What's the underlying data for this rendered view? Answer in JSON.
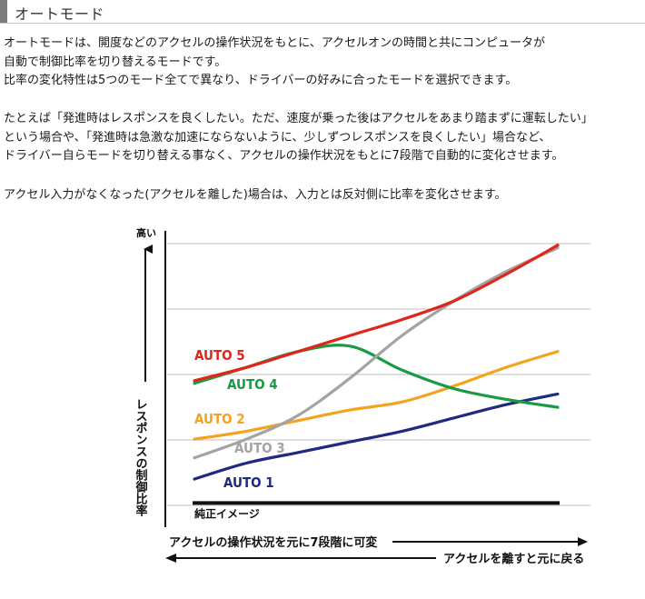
{
  "header": {
    "title": "オートモード"
  },
  "paragraphs": [
    {
      "lines": [
        "オートモードは、開度などのアクセルの操作状況をもとに、アクセルオンの時間と共にコンピュータが",
        "自動で制御比率を切り替えるモードです。",
        "比率の変化特性は5つのモード全てで異なり、ドライバーの好みに合ったモードを選択できます。"
      ]
    },
    {
      "lines": [
        "たとえば「発進時はレスポンスを良くしたい。ただ、速度が乗った後はアクセルをあまり踏まずに運転したい」",
        "という場合や、「発進時は急激な加速にならないように、少しずつレスポンスを良くしたい」場合など、",
        "ドライバー自らモードを切り替える事なく、アクセルの操作状況をもとに7段階で自動的に変化させます。"
      ]
    },
    {
      "lines": [
        "アクセル入力がなくなった(アクセルを離した)場合は、入力とは反対側に比率を変化させます。"
      ]
    }
  ],
  "chart_data": {
    "type": "line",
    "ylabel_top": "高い",
    "ylabel": "レスポンスの制御比率",
    "xlabel_forward": "アクセルの操作状況を元に7段階に可変",
    "xlabel_backward": "アクセルを離すと元に戻る",
    "y_gridlines": 5,
    "legend_placement": "inline",
    "baseline_label": "純正イメージ",
    "x": [
      0,
      1,
      2,
      3,
      4,
      5,
      6,
      7
    ],
    "series": [
      {
        "name": "AUTO 5",
        "color": "#e0251b",
        "values": [
          2.05,
          2.3,
          2.6,
          2.9,
          3.2,
          3.55,
          4.05,
          4.6
        ]
      },
      {
        "name": "AUTO 4",
        "color": "#1a9a45",
        "values": [
          2.0,
          2.3,
          2.6,
          2.7,
          2.25,
          1.9,
          1.7,
          1.55
        ]
      },
      {
        "name": "AUTO 3",
        "color": "#a3a3a3",
        "values": [
          0.6,
          0.95,
          1.4,
          2.1,
          2.9,
          3.55,
          4.1,
          4.55
        ]
      },
      {
        "name": "AUTO 2",
        "color": "#f5a21c",
        "values": [
          0.95,
          1.1,
          1.3,
          1.5,
          1.65,
          1.95,
          2.3,
          2.6
        ]
      },
      {
        "name": "AUTO 1",
        "color": "#1f2a80",
        "values": [
          0.2,
          0.5,
          0.7,
          0.9,
          1.1,
          1.35,
          1.6,
          1.8
        ]
      }
    ],
    "baseline": {
      "name": "純正イメージ",
      "color": "#111111",
      "value": -0.25
    },
    "ylim": [
      -0.5,
      4.8
    ]
  }
}
